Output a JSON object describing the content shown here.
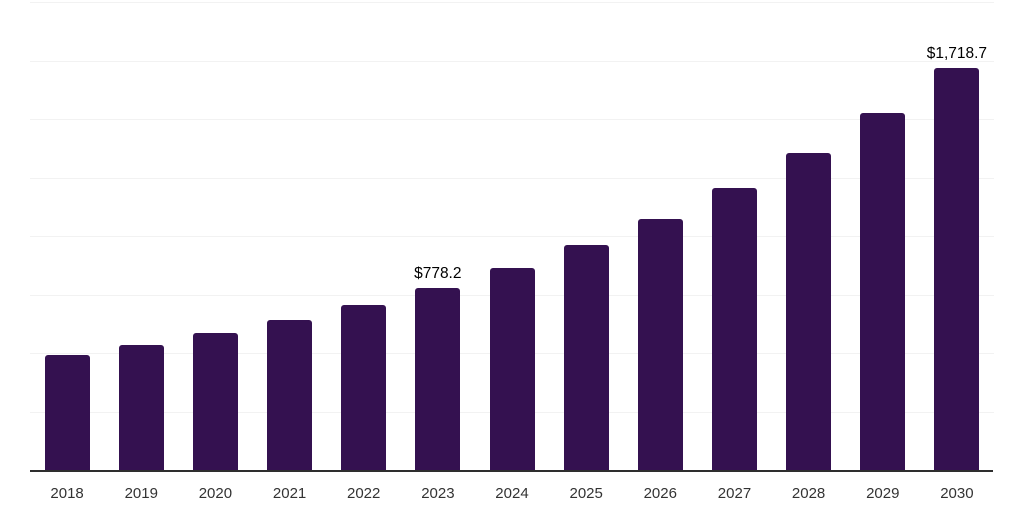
{
  "chart_data": {
    "type": "bar",
    "title": "",
    "xlabel": "",
    "ylabel": "",
    "categories": [
      "2018",
      "2019",
      "2020",
      "2021",
      "2022",
      "2023",
      "2024",
      "2025",
      "2026",
      "2027",
      "2028",
      "2029",
      "2030"
    ],
    "values": [
      490,
      535,
      587,
      641,
      705,
      778.2,
      865,
      961,
      1072,
      1205,
      1356,
      1524,
      1718.7
    ],
    "data_labels": {
      "2023": "$778.2",
      "2030": "$1,718.7"
    },
    "ylim": [
      0,
      2000
    ],
    "gridline_step": 250,
    "grid": "horizontal-only",
    "legend_position": "none",
    "y_axis_labels_visible": false,
    "colors": {
      "bar": "#341150",
      "axis_line": "#2e2e2e",
      "gridline": "#f2f2f2",
      "data_label": "#000000",
      "tick_label": "#333333",
      "background": "#ffffff"
    }
  }
}
